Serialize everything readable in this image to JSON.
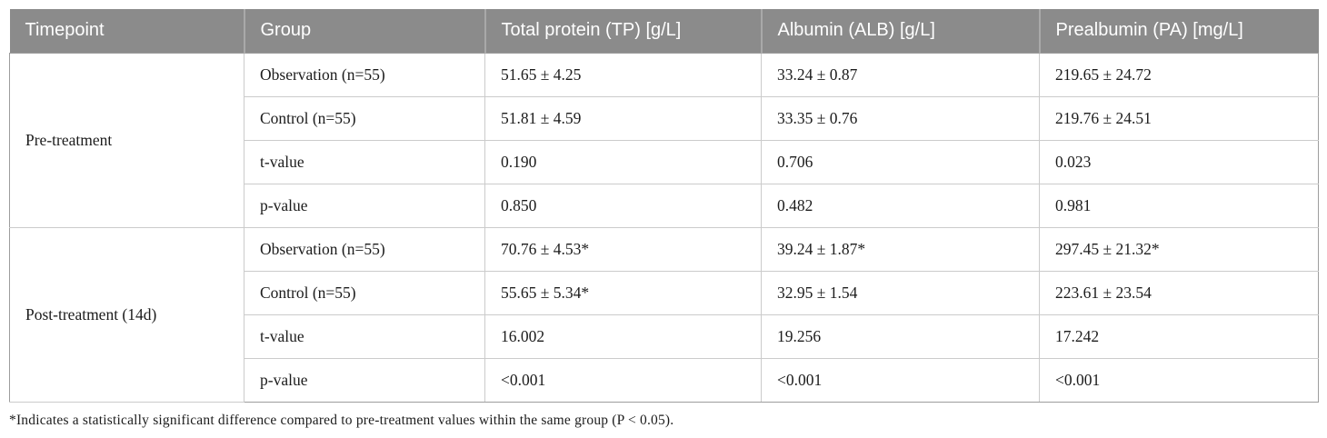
{
  "table": {
    "columns": {
      "timepoint": "Timepoint",
      "group": "Group",
      "tp": "Total protein (TP) [g/L]",
      "alb": "Albumin (ALB) [g/L]",
      "pa": "Prealbumin (PA) [mg/L]"
    },
    "sections": [
      {
        "timepoint": "Pre-treatment",
        "rows": [
          {
            "group": "Observation (n=55)",
            "tp": "51.65 ± 4.25",
            "alb": "33.24 ± 0.87",
            "pa": "219.65 ± 24.72"
          },
          {
            "group": "Control (n=55)",
            "tp": "51.81 ± 4.59",
            "alb": "33.35 ± 0.76",
            "pa": "219.76 ± 24.51"
          },
          {
            "group": "t-value",
            "tp": "0.190",
            "alb": "0.706",
            "pa": "0.023"
          },
          {
            "group": "p-value",
            "tp": "0.850",
            "alb": "0.482",
            "pa": "0.981"
          }
        ]
      },
      {
        "timepoint": "Post-treatment (14d)",
        "rows": [
          {
            "group": "Observation (n=55)",
            "tp": "70.76 ± 4.53*",
            "alb": "39.24 ± 1.87*",
            "pa": "297.45 ± 21.32*"
          },
          {
            "group": "Control (n=55)",
            "tp": "55.65 ± 5.34*",
            "alb": "32.95 ± 1.54",
            "pa": "223.61 ± 23.54"
          },
          {
            "group": "t-value",
            "tp": "16.002",
            "alb": "19.256",
            "pa": "17.242"
          },
          {
            "group": "p-value",
            "tp": "<0.001",
            "alb": "<0.001",
            "pa": "<0.001"
          }
        ]
      }
    ],
    "footnote": "*Indicates a statistically significant difference compared to pre-treatment values within the same group (P < 0.05)."
  },
  "colors": {
    "header_bg": "#8b8b8b",
    "header_text": "#ffffff",
    "inner_border": "#cbcbcb",
    "outer_border": "#9d9d9d",
    "body_text": "#1c1c1c"
  }
}
